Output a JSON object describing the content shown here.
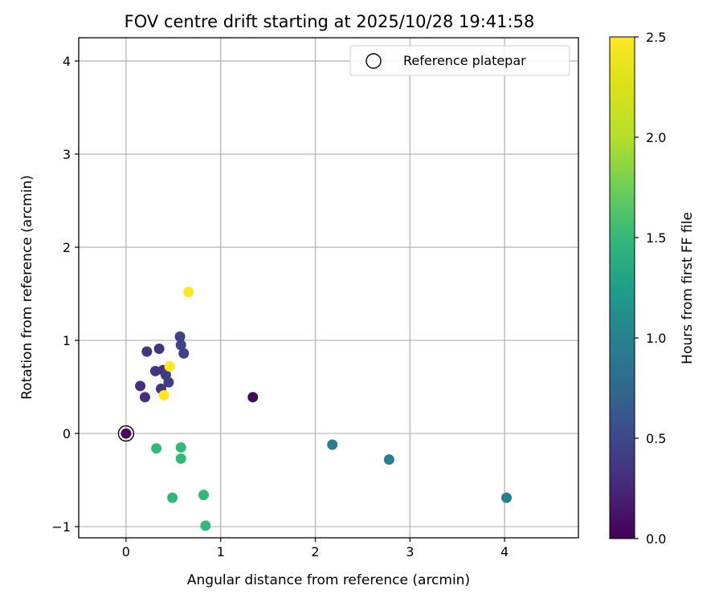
{
  "chart_data": {
    "type": "scatter",
    "title": "FOV centre drift starting at 2025/10/28 19:41:58",
    "xlabel": "Angular distance from reference (arcmin)",
    "ylabel": "Rotation from reference (arcmin)",
    "xlim": [
      -0.5,
      4.78
    ],
    "ylim": [
      -1.12,
      4.25
    ],
    "xticks": [
      0,
      1,
      2,
      3,
      4
    ],
    "xtick_labels": [
      "0",
      "1",
      "2",
      "3",
      "4"
    ],
    "yticks": [
      -1,
      0,
      1,
      2,
      3,
      4
    ],
    "ytick_labels": [
      "−1",
      "0",
      "1",
      "2",
      "3",
      "4"
    ],
    "grid": true,
    "legend": {
      "label": "Reference platepar",
      "location": "top-right"
    },
    "reference_point": {
      "x": 0,
      "y": 0
    },
    "colorbar": {
      "label": "Hours from first FF file",
      "colormap": "viridis",
      "range": [
        0,
        2.5
      ],
      "ticks": [
        0,
        0.5,
        1,
        1.5,
        2,
        2.5
      ],
      "tick_labels": [
        "0.0",
        "0.5",
        "1.0",
        "1.5",
        "2.0",
        "2.5"
      ]
    },
    "points": [
      {
        "x": 0.0,
        "y": 0.0,
        "hours": 0.05
      },
      {
        "x": 1.34,
        "y": 0.39,
        "hours": 0.05
      },
      {
        "x": 0.15,
        "y": 0.51,
        "hours": 0.3
      },
      {
        "x": 0.2,
        "y": 0.39,
        "hours": 0.3
      },
      {
        "x": 0.22,
        "y": 0.88,
        "hours": 0.35
      },
      {
        "x": 0.31,
        "y": 0.67,
        "hours": 0.35
      },
      {
        "x": 0.35,
        "y": 0.91,
        "hours": 0.35
      },
      {
        "x": 0.37,
        "y": 0.48,
        "hours": 0.35
      },
      {
        "x": 0.39,
        "y": 0.68,
        "hours": 0.35
      },
      {
        "x": 0.42,
        "y": 0.63,
        "hours": 0.4
      },
      {
        "x": 0.45,
        "y": 0.55,
        "hours": 0.4
      },
      {
        "x": 0.57,
        "y": 1.04,
        "hours": 0.45
      },
      {
        "x": 0.58,
        "y": 0.95,
        "hours": 0.45
      },
      {
        "x": 0.61,
        "y": 0.86,
        "hours": 0.45
      },
      {
        "x": 0.32,
        "y": -0.16,
        "hours": 1.5
      },
      {
        "x": 0.58,
        "y": -0.15,
        "hours": 1.5
      },
      {
        "x": 0.58,
        "y": -0.27,
        "hours": 1.5
      },
      {
        "x": 0.49,
        "y": -0.69,
        "hours": 1.5
      },
      {
        "x": 0.82,
        "y": -0.66,
        "hours": 1.5
      },
      {
        "x": 0.84,
        "y": -0.99,
        "hours": 1.5
      },
      {
        "x": 2.18,
        "y": -0.12,
        "hours": 0.95
      },
      {
        "x": 2.78,
        "y": -0.28,
        "hours": 0.95
      },
      {
        "x": 4.02,
        "y": -0.69,
        "hours": 0.95
      },
      {
        "x": 0.66,
        "y": 1.52,
        "hours": 2.5
      },
      {
        "x": 0.46,
        "y": 0.72,
        "hours": 2.5
      },
      {
        "x": 0.4,
        "y": 0.41,
        "hours": 2.5
      }
    ]
  }
}
